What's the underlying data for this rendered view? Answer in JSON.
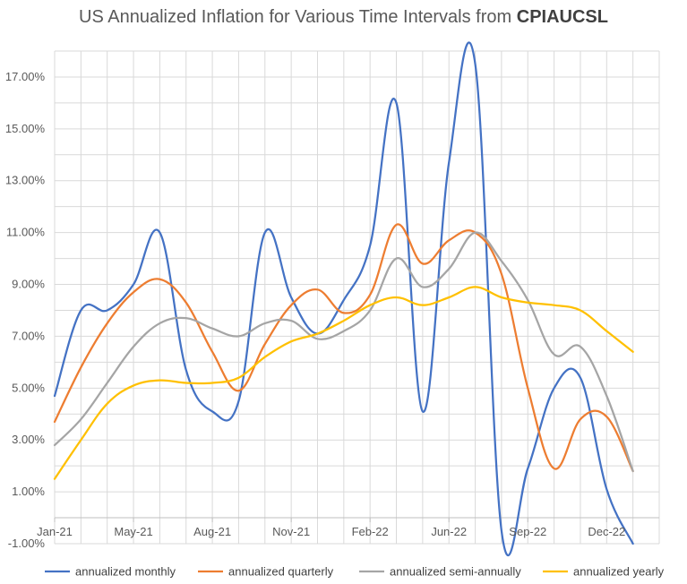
{
  "chart_data": {
    "type": "line",
    "title": "US Annualized Inflation for Various Time Intervals from ",
    "title_emphasis": "CPIAUCSL",
    "xlabel": "",
    "ylabel": "",
    "x_ticks": [
      "Jan-21",
      "May-21",
      "Aug-21",
      "Nov-21",
      "Feb-22",
      "Jun-22",
      "Sep-22",
      "Dec-22"
    ],
    "y_ticks": [
      "-1.00%",
      "1.00%",
      "3.00%",
      "5.00%",
      "7.00%",
      "9.00%",
      "11.00%",
      "13.00%",
      "15.00%",
      "17.00%"
    ],
    "ylim": [
      -1,
      18
    ],
    "x": [
      "2021-01",
      "2021-02",
      "2021-03",
      "2021-04",
      "2021-05",
      "2021-06",
      "2021-07",
      "2021-08",
      "2021-09",
      "2021-10",
      "2021-11",
      "2021-12",
      "2022-01",
      "2022-02",
      "2022-03",
      "2022-04",
      "2022-05",
      "2022-06",
      "2022-07",
      "2022-08",
      "2022-09",
      "2022-10",
      "2022-11"
    ],
    "series": [
      {
        "name": "annualized monthly",
        "color": "#4472C4",
        "values": [
          4.7,
          8.0,
          8.0,
          9.0,
          11.0,
          5.7,
          4.1,
          4.5,
          11.0,
          8.5,
          7.1,
          8.4,
          10.5,
          16.0,
          4.1,
          13.7,
          17.5,
          -0.5,
          1.9,
          5.0,
          5.4,
          1.1,
          -1.0
        ]
      },
      {
        "name": "annualized quarterly",
        "color": "#ED7D31",
        "values": [
          3.7,
          5.8,
          7.5,
          8.7,
          9.2,
          8.3,
          6.4,
          4.9,
          6.7,
          8.2,
          8.8,
          7.9,
          8.6,
          11.3,
          9.8,
          10.7,
          11.0,
          9.4,
          5.0,
          1.9,
          3.8,
          3.9,
          1.8
        ]
      },
      {
        "name": "annualized semi-annually",
        "color": "#A5A5A5",
        "values": [
          2.8,
          3.8,
          5.2,
          6.6,
          7.5,
          7.7,
          7.3,
          7.0,
          7.5,
          7.6,
          6.9,
          7.2,
          8.0,
          10.0,
          8.9,
          9.6,
          11.0,
          9.9,
          8.4,
          6.3,
          6.6,
          4.7,
          1.8
        ]
      },
      {
        "name": "annualized yearly",
        "color": "#FFC000",
        "values": [
          1.5,
          3.0,
          4.4,
          5.1,
          5.3,
          5.2,
          5.2,
          5.4,
          6.2,
          6.8,
          7.1,
          7.6,
          8.2,
          8.5,
          8.2,
          8.5,
          8.9,
          8.5,
          8.3,
          8.2,
          8.0,
          7.2,
          6.4
        ]
      }
    ],
    "grid": true,
    "legend_position": "bottom"
  }
}
